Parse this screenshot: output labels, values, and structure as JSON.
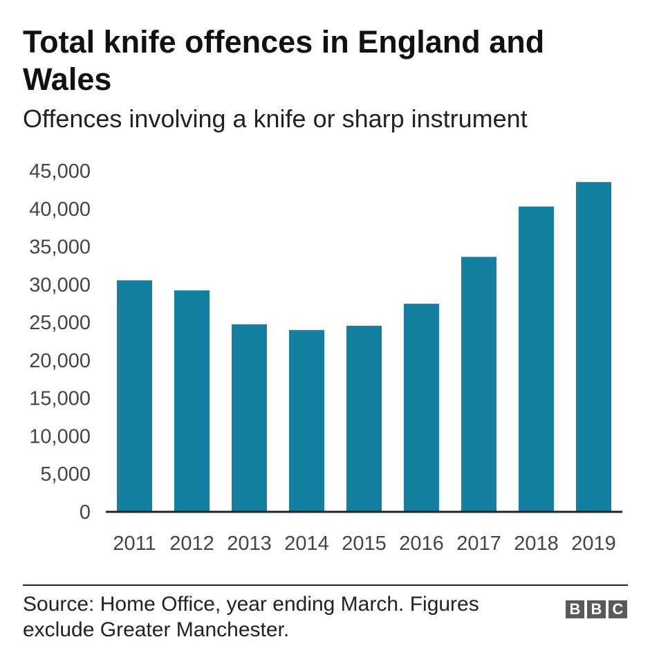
{
  "header": {
    "title": "Total knife offences in England and Wales",
    "subtitle": "Offences involving a knife or sharp instrument"
  },
  "footer": {
    "source": "Source: Home Office, year ending March. Figures exclude Greater Manchester.",
    "logo_letters": [
      "B",
      "B",
      "C"
    ]
  },
  "colors": {
    "bar": "#1380a1",
    "axis": "#222222",
    "tick_text": "#444444"
  },
  "chart_data": {
    "type": "bar",
    "categories": [
      "2011",
      "2012",
      "2013",
      "2014",
      "2015",
      "2016",
      "2017",
      "2018",
      "2019"
    ],
    "values": [
      30550,
      29230,
      24750,
      23990,
      24550,
      27460,
      33650,
      40290,
      43520
    ],
    "yticks": [
      "0",
      "5,000",
      "10,000",
      "15,000",
      "20,000",
      "25,000",
      "30,000",
      "35,000",
      "40,000",
      "45,000"
    ],
    "ylim": [
      0,
      45000
    ],
    "title": "Total knife offences in England and Wales",
    "subtitle": "Offences involving a knife or sharp instrument",
    "xlabel": "",
    "ylabel": "",
    "grid": false,
    "legend": "none"
  }
}
